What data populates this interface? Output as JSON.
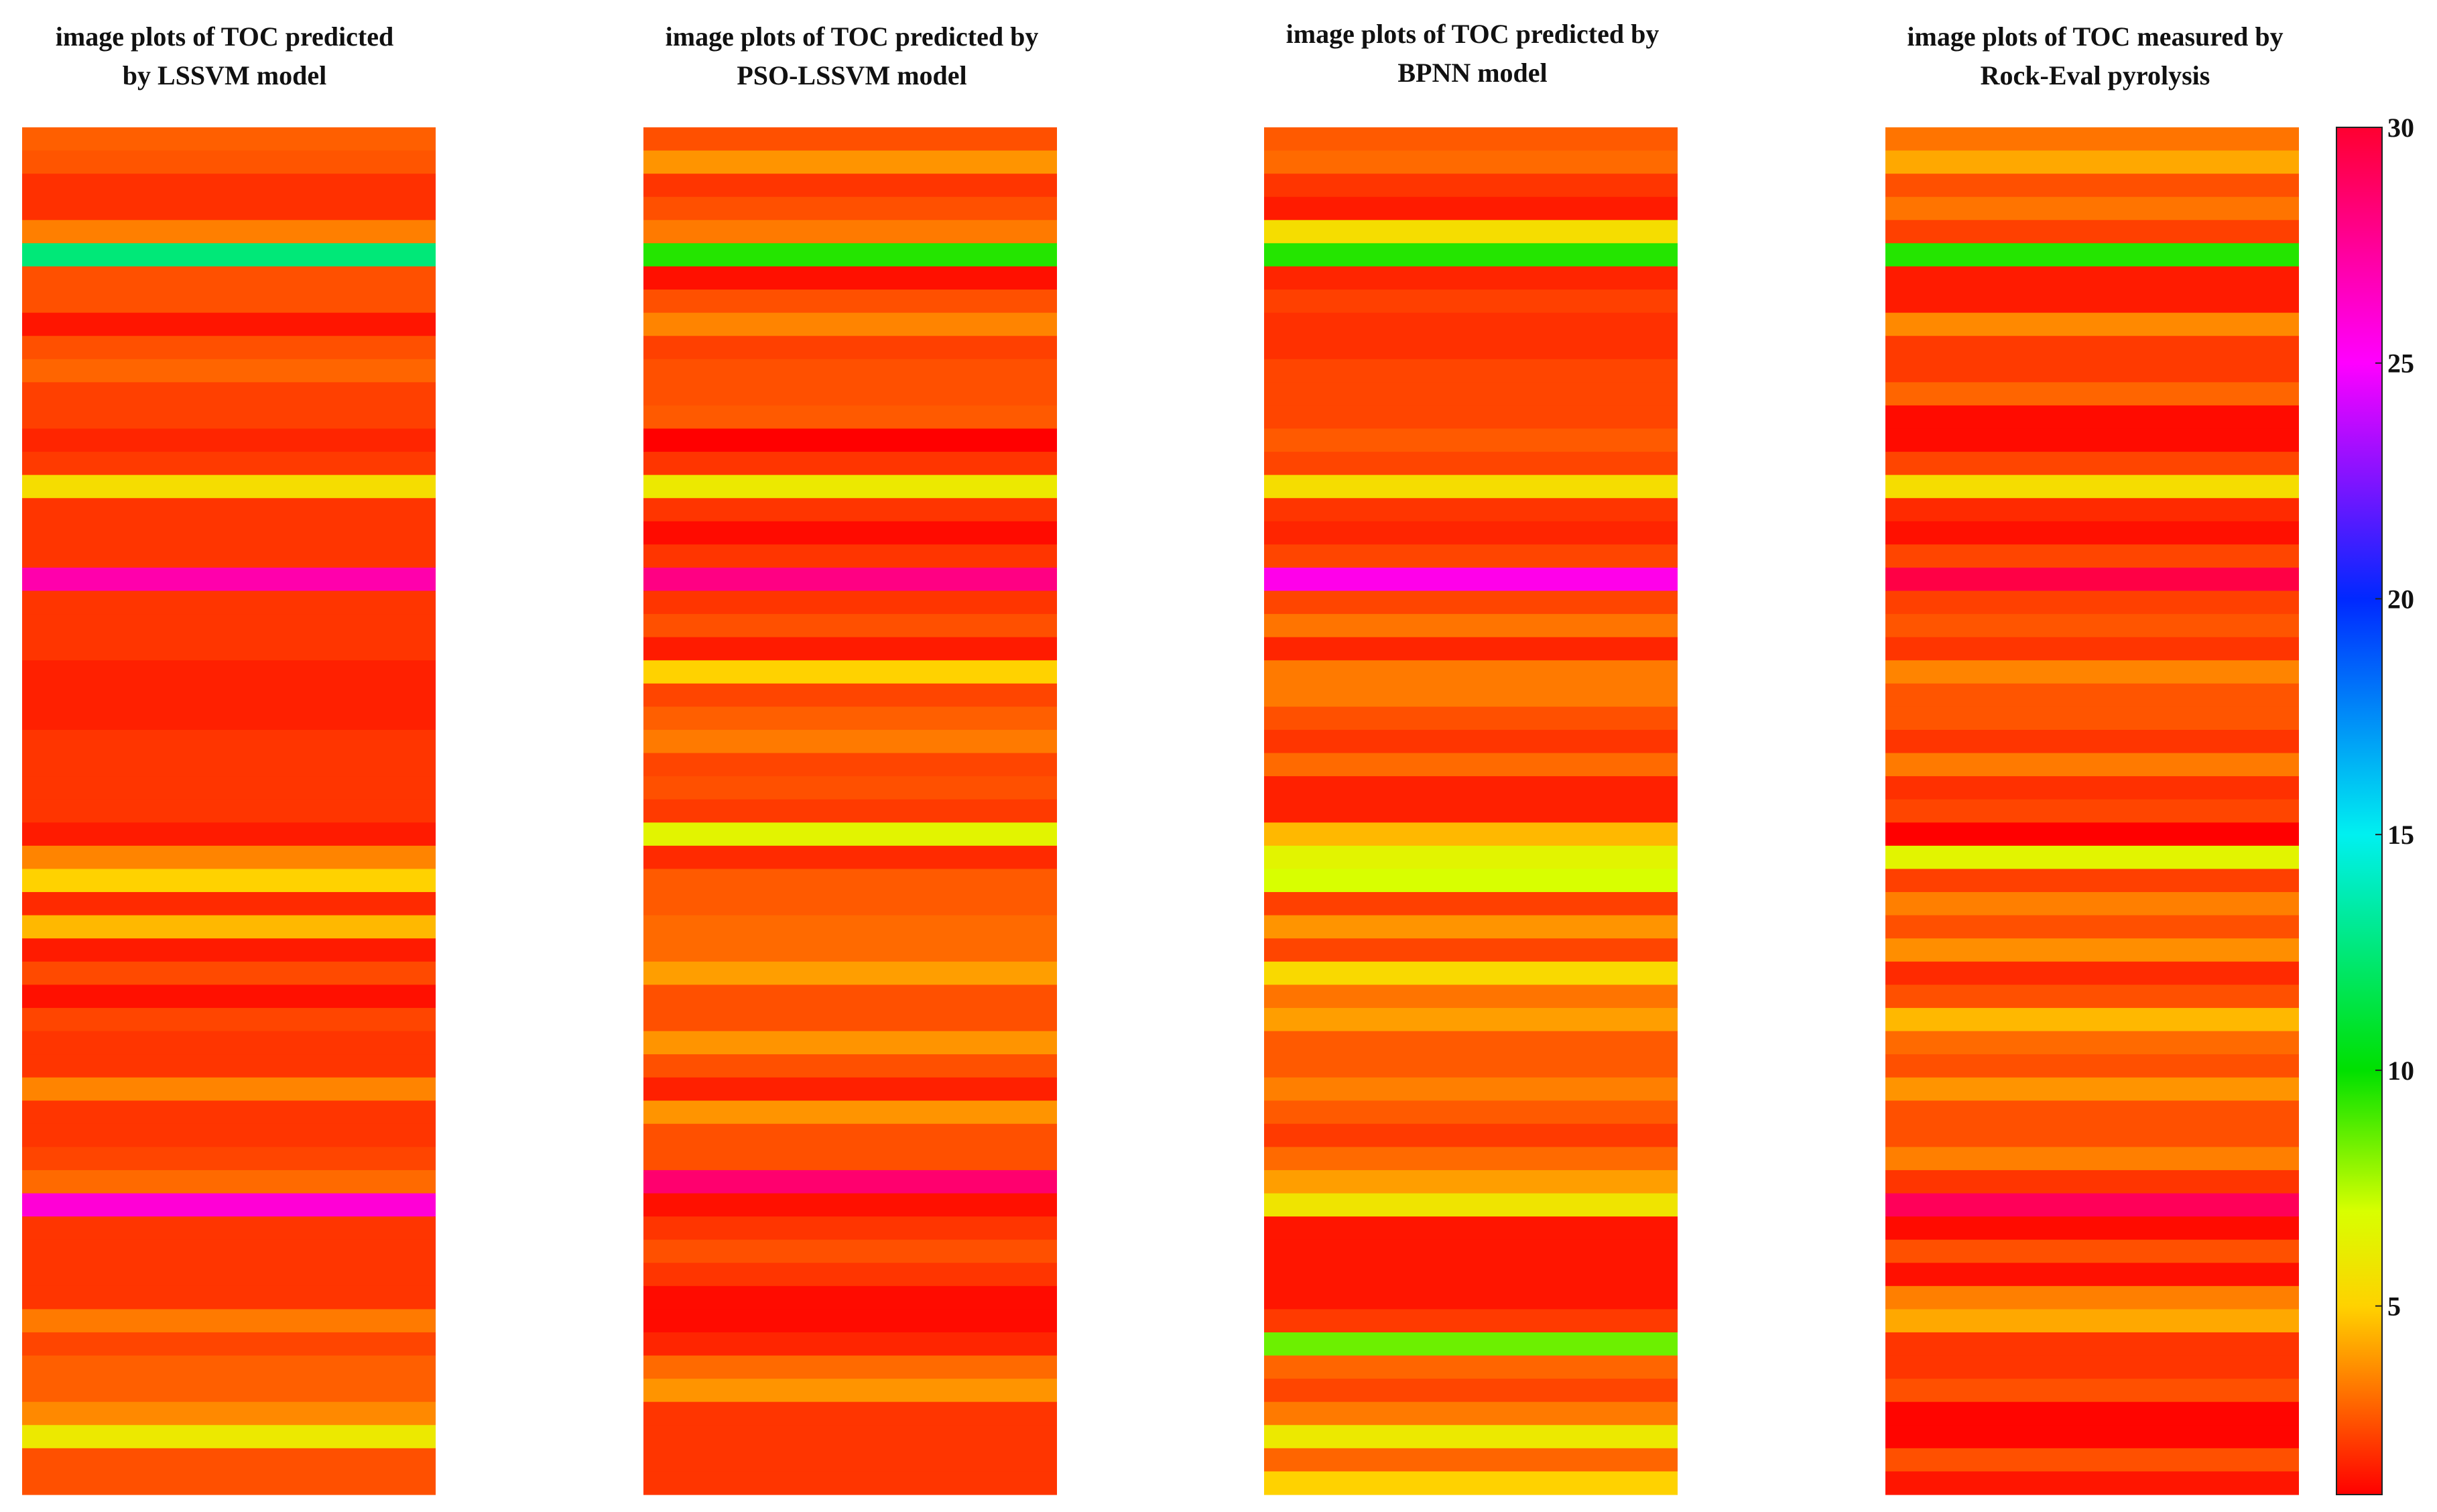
{
  "chart_data": {
    "type": "heatmap",
    "colorbar": {
      "range": [
        1,
        30
      ],
      "ticks": [
        5,
        10,
        15,
        20,
        25,
        30
      ],
      "tick_labels": [
        "5",
        "10",
        "15",
        "20",
        "25",
        "30"
      ],
      "colormap": [
        {
          "value": 1,
          "color": "#ff0000"
        },
        {
          "value": 3,
          "color": "#ff6a00"
        },
        {
          "value": 5,
          "color": "#ffd200"
        },
        {
          "value": 7,
          "color": "#d8ff00"
        },
        {
          "value": 10,
          "color": "#00e000"
        },
        {
          "value": 15,
          "color": "#00f0f0"
        },
        {
          "value": 20,
          "color": "#0028ff"
        },
        {
          "value": 25,
          "color": "#ff00ff"
        },
        {
          "value": 30,
          "color": "#ff0030"
        }
      ]
    },
    "panels": [
      {
        "title_line1": "image plots of TOC predicted",
        "title_line2": "by LSSVM model",
        "values": [
          2.8,
          2.6,
          1.9,
          1.9,
          3.4,
          12.5,
          2.5,
          2.5,
          1.4,
          2.5,
          2.9,
          2.2,
          2.2,
          1.7,
          2.1,
          5.5,
          2.0,
          2.0,
          2.0,
          27.0,
          2.0,
          2.0,
          2.0,
          1.6,
          1.6,
          1.6,
          2.0,
          2.0,
          2.0,
          2.0,
          1.5,
          3.5,
          5.0,
          1.8,
          4.5,
          1.5,
          2.4,
          1.3,
          2.3,
          2.0,
          2.0,
          3.5,
          2.0,
          2.0,
          2.3,
          3.0,
          26.0,
          2.0,
          2.0,
          2.0,
          2.0,
          3.3,
          2.3,
          2.8,
          2.8,
          3.6,
          6.0,
          2.5,
          2.5
        ]
      },
      {
        "title_line1": "image plots of TOC predicted by",
        "title_line2": "PSO-LSSVM model",
        "values": [
          2.5,
          3.8,
          2.0,
          2.5,
          3.3,
          9.5,
          1.3,
          2.5,
          3.5,
          2.2,
          2.5,
          2.5,
          2.7,
          1.0,
          2.0,
          6.0,
          2.0,
          1.2,
          2.0,
          28.0,
          2.0,
          2.5,
          1.5,
          5.0,
          2.3,
          2.8,
          3.3,
          2.3,
          2.5,
          2.1,
          6.5,
          1.8,
          2.7,
          2.7,
          3.0,
          3.0,
          4.0,
          2.5,
          2.5,
          3.8,
          2.5,
          1.6,
          3.8,
          2.5,
          2.5,
          28.5,
          1.3,
          2.0,
          2.5,
          2.0,
          1.2,
          1.2,
          1.7,
          3.0,
          3.8,
          2.0,
          2.0,
          2.0,
          2.0
        ]
      },
      {
        "title_line1": "image plots of TOC predicted by",
        "title_line2": "BPNN model",
        "values": [
          2.7,
          3.0,
          2.0,
          1.5,
          5.5,
          9.5,
          1.7,
          2.2,
          1.9,
          1.9,
          2.3,
          2.3,
          2.3,
          2.7,
          2.3,
          5.5,
          2.0,
          1.7,
          2.3,
          25.5,
          2.3,
          3.2,
          1.7,
          3.3,
          3.3,
          2.5,
          2.0,
          3.0,
          1.6,
          1.6,
          4.5,
          6.5,
          7.0,
          2.2,
          3.8,
          2.3,
          5.3,
          3.2,
          4.0,
          2.7,
          2.7,
          3.4,
          2.7,
          2.1,
          3.0,
          4.0,
          5.8,
          1.4,
          1.4,
          1.4,
          1.4,
          2.1,
          8.5,
          2.9,
          2.3,
          3.3,
          6.0,
          2.9,
          5.0
        ]
      },
      {
        "title_line1": "image plots of TOC measured by",
        "title_line2": "Rock-Eval pyrolysis",
        "values": [
          3.2,
          4.2,
          2.5,
          3.2,
          2.2,
          9.5,
          1.5,
          1.5,
          3.6,
          2.1,
          2.1,
          2.9,
          1.2,
          1.2,
          2.3,
          5.5,
          1.8,
          1.3,
          2.3,
          29.5,
          2.2,
          2.6,
          2.0,
          3.5,
          2.6,
          2.6,
          2.0,
          3.3,
          1.9,
          2.3,
          0.8,
          6.5,
          2.2,
          3.4,
          2.5,
          3.7,
          1.8,
          2.5,
          4.5,
          3.0,
          2.5,
          3.8,
          2.5,
          2.5,
          3.4,
          2.0,
          29.0,
          1.2,
          2.5,
          1.3,
          3.4,
          4.2,
          2.0,
          2.0,
          2.5,
          1.1,
          1.1,
          2.5,
          1.4
        ]
      }
    ]
  }
}
